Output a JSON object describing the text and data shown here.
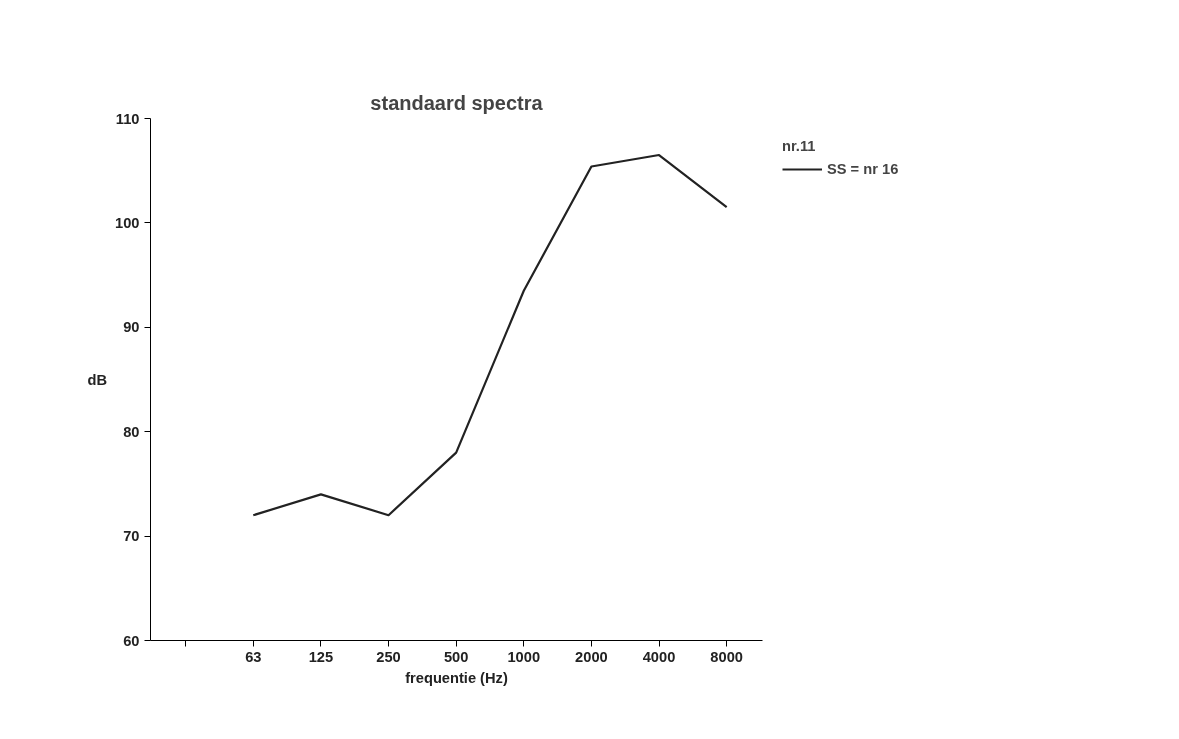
{
  "chart_data": {
    "type": "line",
    "title": "standaard spectra",
    "xlabel": "frequentie (Hz)",
    "ylabel": "dB",
    "legend_title": "nr.11",
    "categories": [
      null,
      "63",
      "125",
      "250",
      "500",
      "1000",
      "2000",
      "4000",
      "8000"
    ],
    "series": [
      {
        "name": "SS = nr 16",
        "color": "#222222",
        "values": [
          null,
          72,
          74,
          72,
          78,
          93.5,
          105.4,
          106.5,
          101.5
        ]
      }
    ],
    "ylim": [
      60,
      110
    ],
    "yticks": [
      60,
      70,
      80,
      90,
      100,
      110
    ],
    "grid": false,
    "legend": "top right",
    "marker": "none",
    "line_style": "solid"
  }
}
